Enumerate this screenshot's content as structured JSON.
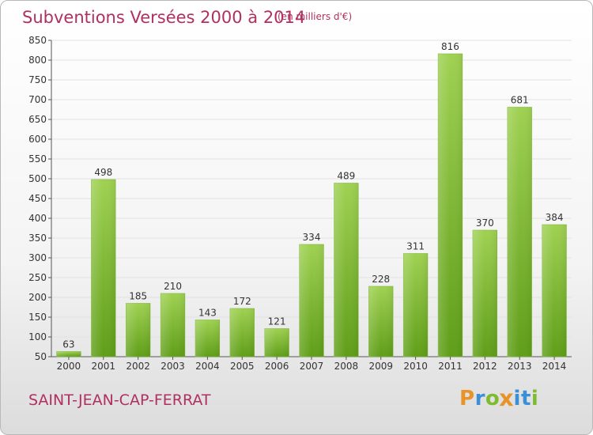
{
  "header": {
    "title": "Subventions Versées 2000 à 2014",
    "subtitle": "(en milliers d'€)"
  },
  "footer": {
    "commune": "SAINT-JEAN-CAP-FERRAT",
    "logo_letters": [
      "P",
      "r",
      "o",
      "x",
      "i",
      "t",
      "i"
    ],
    "logo_colors": [
      "#e8932a",
      "#3a8fd6",
      "#7dbb2f",
      "#e8932a",
      "#3a8fd6",
      "#3a8fd6",
      "#7dbb2f"
    ]
  },
  "colors": {
    "title": "#b03060",
    "bar_light": "#9fd152",
    "bar_dark": "#5f9e18",
    "grid": "#e2e2e2",
    "axis": "#555555"
  },
  "chart_data": {
    "type": "bar",
    "categories": [
      "2000",
      "2001",
      "2002",
      "2003",
      "2004",
      "2005",
      "2006",
      "2007",
      "2008",
      "2009",
      "2010",
      "2011",
      "2012",
      "2013",
      "2014"
    ],
    "values": [
      63,
      498,
      185,
      210,
      143,
      172,
      121,
      334,
      489,
      228,
      311,
      816,
      370,
      681,
      384
    ],
    "ylim": [
      50,
      850
    ],
    "yticks": [
      50,
      100,
      150,
      200,
      250,
      300,
      350,
      400,
      450,
      500,
      550,
      600,
      650,
      700,
      750,
      800,
      850
    ],
    "grid": true,
    "legend": "none"
  }
}
